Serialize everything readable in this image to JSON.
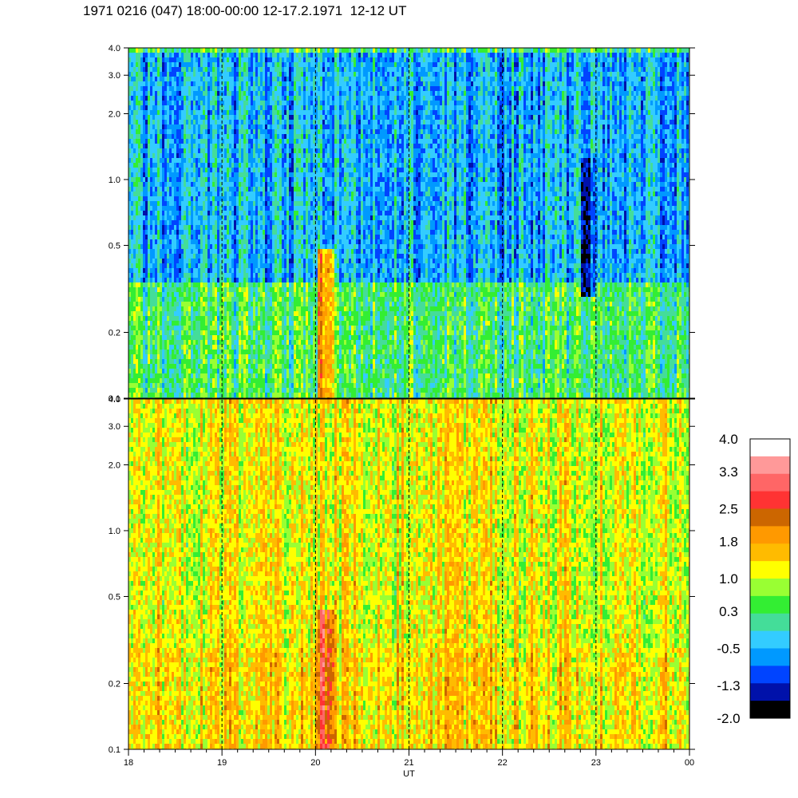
{
  "title": "1971 0216 (047) 18:00-00:00 12-17.2.1971  12-12 UT",
  "chart_data": [
    {
      "type": "heatmap",
      "panel": "upper",
      "ylim": [
        0.1,
        4.0
      ],
      "y_scale": "log",
      "y_ticks": [
        "0.1",
        "0.2",
        "0.5",
        "1.0",
        "2.0",
        "3.0",
        "4.0"
      ],
      "y_tick_values": [
        0.1,
        0.2,
        0.5,
        1.0,
        2.0,
        3.0,
        4.0
      ],
      "dominant_levels_by_frequency": [
        {
          "range": [
            0.1,
            0.35
          ],
          "level": 0.3
        },
        {
          "range": [
            0.35,
            4.0
          ],
          "level": -0.5
        }
      ],
      "features": [
        {
          "x": 20.1,
          "yrange": [
            0.1,
            0.5
          ],
          "level": 1.8
        },
        {
          "x": 22.9,
          "yrange": [
            0.3,
            1.3
          ],
          "level": -1.3
        }
      ]
    },
    {
      "type": "heatmap",
      "panel": "lower",
      "ylim": [
        0.1,
        4.0
      ],
      "y_scale": "log",
      "y_ticks": [
        "0.1",
        "0.2",
        "0.5",
        "1.0",
        "2.0",
        "3.0",
        "4.0"
      ],
      "y_tick_values": [
        0.1,
        0.2,
        0.5,
        1.0,
        2.0,
        3.0,
        4.0
      ],
      "dominant_levels_by_frequency": [
        {
          "range": [
            0.1,
            0.3
          ],
          "level": 1.4
        },
        {
          "range": [
            0.3,
            4.0
          ],
          "level": 1.2
        }
      ],
      "features": [
        {
          "x": 20.1,
          "yrange": [
            0.1,
            0.45
          ],
          "level": 2.5
        }
      ]
    }
  ],
  "x_axis": {
    "label": "UT",
    "xlim": [
      18,
      24
    ],
    "ticks": [
      "18",
      "19",
      "20",
      "21",
      "22",
      "23",
      "00"
    ],
    "tick_values": [
      18,
      19,
      20,
      21,
      22,
      23,
      24
    ],
    "grid_vertical_dashed": true
  },
  "colorbar": {
    "labels": [
      "4.0",
      "3.3",
      "2.5",
      "1.8",
      "1.0",
      "0.3",
      "-0.5",
      "-1.3",
      "-2.0"
    ],
    "label_values": [
      4.0,
      3.3,
      2.5,
      1.8,
      1.0,
      0.3,
      -0.5,
      -1.3,
      -2.0
    ],
    "colors": [
      "#ffffff",
      "#ff9999",
      "#ff6666",
      "#ff3333",
      "#cc6600",
      "#ff9900",
      "#ffbb00",
      "#ffff00",
      "#99ff33",
      "#33ee33",
      "#44dd99",
      "#33ccff",
      "#0099ff",
      "#0044ff",
      "#0011aa",
      "#000000"
    ]
  }
}
